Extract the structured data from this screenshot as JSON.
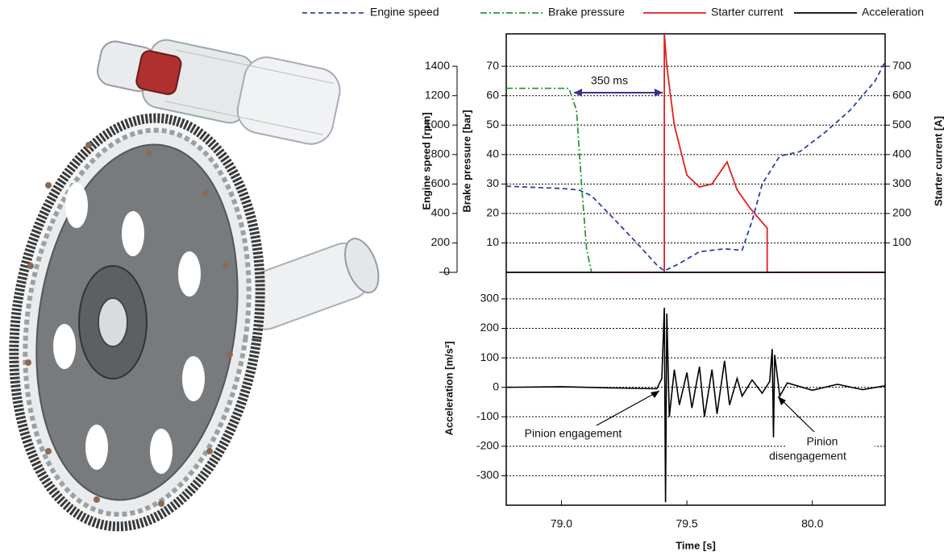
{
  "chart_data": [
    {
      "type": "line",
      "annotation": "350 ms",
      "ylabel": "Engine speed [rpm]",
      "y2label": "Brake pressure [bar]",
      "y3label": "Starter current [A]",
      "xlim": [
        78.78,
        80.29
      ],
      "ylim": [
        0,
        1620
      ],
      "yticks": [
        0,
        200,
        400,
        600,
        800,
        1000,
        1200,
        1400
      ],
      "y2lim": [
        0,
        81
      ],
      "y2ticks": [
        10,
        20,
        30,
        40,
        50,
        60,
        70
      ],
      "y3lim": [
        0,
        810
      ],
      "y3ticks": [
        100,
        200,
        300,
        400,
        500,
        600,
        700
      ],
      "grid": true,
      "series": [
        {
          "name": "Engine speed",
          "color": "#2f3fa8",
          "style": "dashed",
          "axis": "y",
          "x": [
            78.78,
            79.0,
            79.07,
            79.12,
            79.2,
            79.3,
            79.38,
            79.41,
            79.47,
            79.55,
            79.65,
            79.72,
            79.76,
            79.8,
            79.87,
            79.95,
            80.05,
            80.15,
            80.25,
            80.29
          ],
          "values": [
            585,
            570,
            560,
            520,
            380,
            200,
            50,
            10,
            60,
            140,
            160,
            150,
            350,
            600,
            790,
            820,
            950,
            1100,
            1300,
            1430
          ]
        },
        {
          "name": "Brake pressure",
          "color": "#2a9a3a",
          "style": "dashdot",
          "axis": "y2",
          "x": [
            78.78,
            79.03,
            79.06,
            79.08,
            79.1,
            79.12,
            80.29
          ],
          "values": [
            62.5,
            62.5,
            55,
            30,
            8,
            0,
            0
          ]
        },
        {
          "name": "Starter current",
          "color": "#e02020",
          "style": "solid",
          "axis": "y3",
          "x": [
            79.19,
            79.41,
            79.41,
            79.42,
            79.45,
            79.5,
            79.55,
            79.6,
            79.66,
            79.7,
            79.75,
            79.82,
            79.82,
            80.29
          ],
          "values": [
            0,
            0,
            810,
            700,
            500,
            330,
            290,
            300,
            375,
            280,
            220,
            150,
            0,
            0
          ]
        }
      ]
    },
    {
      "type": "line",
      "xlabel": "Time [s]",
      "ylabel": "Acceleration [m/s²]",
      "annotations": [
        "Pinion engagement",
        [
          "Pinion",
          "disengagement"
        ]
      ],
      "xlim": [
        78.78,
        80.29
      ],
      "xticks": [
        {
          "value": 79,
          "label": "79.0"
        },
        {
          "value": 79.5,
          "label": "79.5"
        },
        {
          "value": 80,
          "label": "80.0"
        }
      ],
      "ylim": [
        -400,
        390
      ],
      "yticks": [
        -300,
        -200,
        -100,
        0,
        100,
        200,
        300
      ],
      "grid": true,
      "series": [
        {
          "name": "Acceleration",
          "color": "#000000",
          "style": "solid",
          "x": [
            78.78,
            79.0,
            79.2,
            79.38,
            79.4,
            79.41,
            79.415,
            79.42,
            79.43,
            79.45,
            79.47,
            79.5,
            79.52,
            79.55,
            79.57,
            79.6,
            79.62,
            79.65,
            79.67,
            79.7,
            79.72,
            79.76,
            79.8,
            79.83,
            79.84,
            79.845,
            79.85,
            79.87,
            79.9,
            80.0,
            80.1,
            80.2,
            80.29
          ],
          "values": [
            0,
            2,
            -2,
            -5,
            30,
            270,
            -390,
            250,
            -100,
            60,
            -60,
            50,
            -70,
            70,
            -100,
            60,
            -90,
            90,
            -60,
            30,
            -30,
            25,
            -20,
            20,
            130,
            -170,
            110,
            -30,
            15,
            -10,
            10,
            -8,
            5
          ]
        }
      ]
    }
  ]
}
